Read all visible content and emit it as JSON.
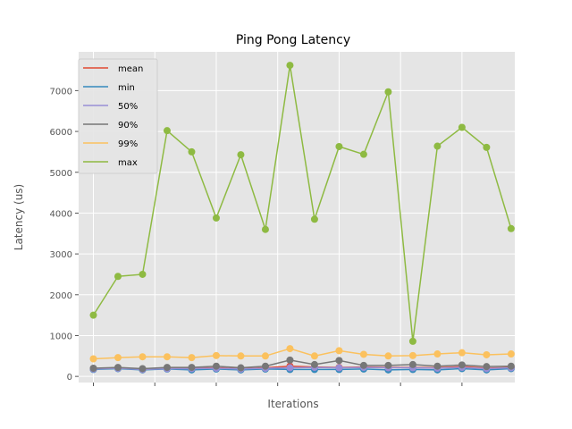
{
  "chart_data": {
    "type": "line",
    "title": "Ping Pong Latency",
    "xlabel": "Iterations",
    "ylabel": "Latency (us)",
    "ylim": [
      -150,
      7950
    ],
    "yticks": [
      0,
      1000,
      2000,
      3000,
      4000,
      5000,
      6000,
      7000
    ],
    "grid": true,
    "legend_position": "upper-left",
    "x": [
      0,
      1,
      2,
      3,
      4,
      5,
      6,
      7,
      8,
      9,
      10,
      11,
      12,
      13,
      14,
      15,
      16,
      17
    ],
    "series": [
      {
        "name": "mean",
        "color": "#E24A33",
        "values": [
          180,
          200,
          170,
          190,
          200,
          210,
          190,
          210,
          250,
          230,
          220,
          230,
          220,
          220,
          210,
          240,
          200,
          220
        ]
      },
      {
        "name": "min",
        "color": "#348ABD",
        "values": [
          170,
          190,
          160,
          180,
          160,
          180,
          160,
          180,
          170,
          170,
          170,
          180,
          160,
          170,
          160,
          190,
          160,
          190
        ]
      },
      {
        "name": "50%",
        "color": "#988ED5",
        "values": [
          180,
          200,
          170,
          190,
          190,
          200,
          180,
          200,
          210,
          220,
          210,
          220,
          210,
          210,
          200,
          220,
          190,
          210
        ]
      },
      {
        "name": "90%",
        "color": "#777777",
        "values": [
          200,
          220,
          190,
          220,
          220,
          250,
          210,
          250,
          400,
          290,
          390,
          270,
          270,
          290,
          250,
          280,
          240,
          250
        ]
      },
      {
        "name": "99%",
        "color": "#FBC15E",
        "values": [
          430,
          460,
          480,
          480,
          460,
          510,
          500,
          500,
          680,
          500,
          630,
          540,
          500,
          510,
          550,
          580,
          530,
          550
        ]
      },
      {
        "name": "max",
        "color": "#8EBA42",
        "values": [
          1500,
          2450,
          2500,
          6020,
          5500,
          3880,
          5430,
          3600,
          7620,
          3850,
          5630,
          5440,
          6970,
          860,
          5640,
          6100,
          5610,
          3620
        ]
      }
    ]
  }
}
